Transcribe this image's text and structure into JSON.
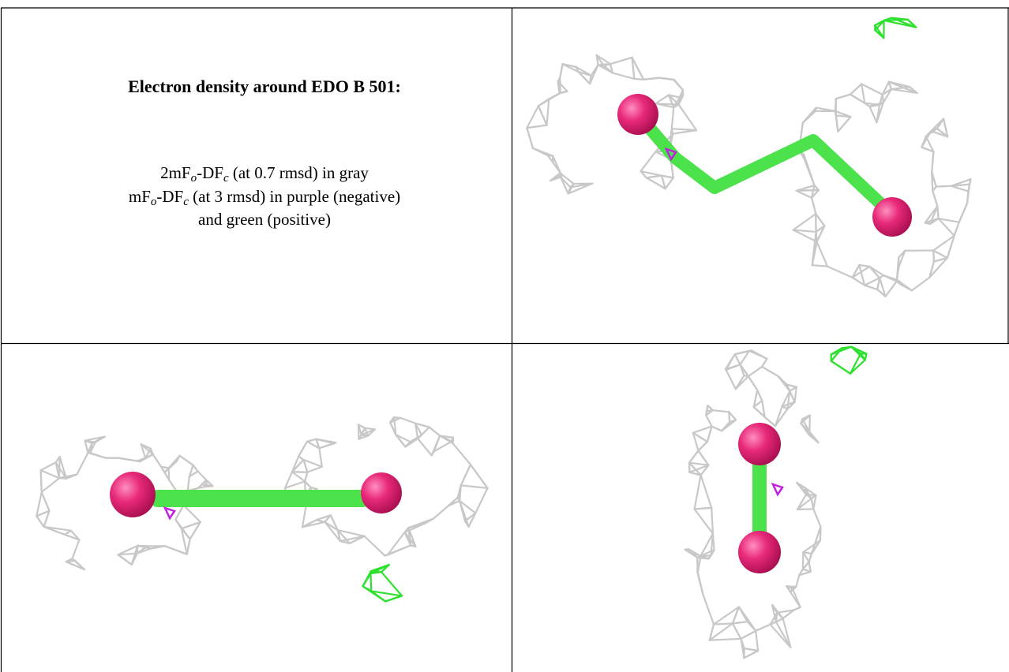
{
  "cell_text": {
    "title": "Electron density around EDO B 501:",
    "line1": {
      "a": "2mF",
      "a_sub": "o",
      "b": "-DF",
      "b_sub": "c",
      "rest": " (at 0.7 rmsd) in gray"
    },
    "line2": {
      "a": "mF",
      "a_sub": "o",
      "b": "-DF",
      "b_sub": "c",
      "rest": " (at 3 rmsd) in purple (negative)"
    },
    "line3": "and green (positive)"
  }
}
